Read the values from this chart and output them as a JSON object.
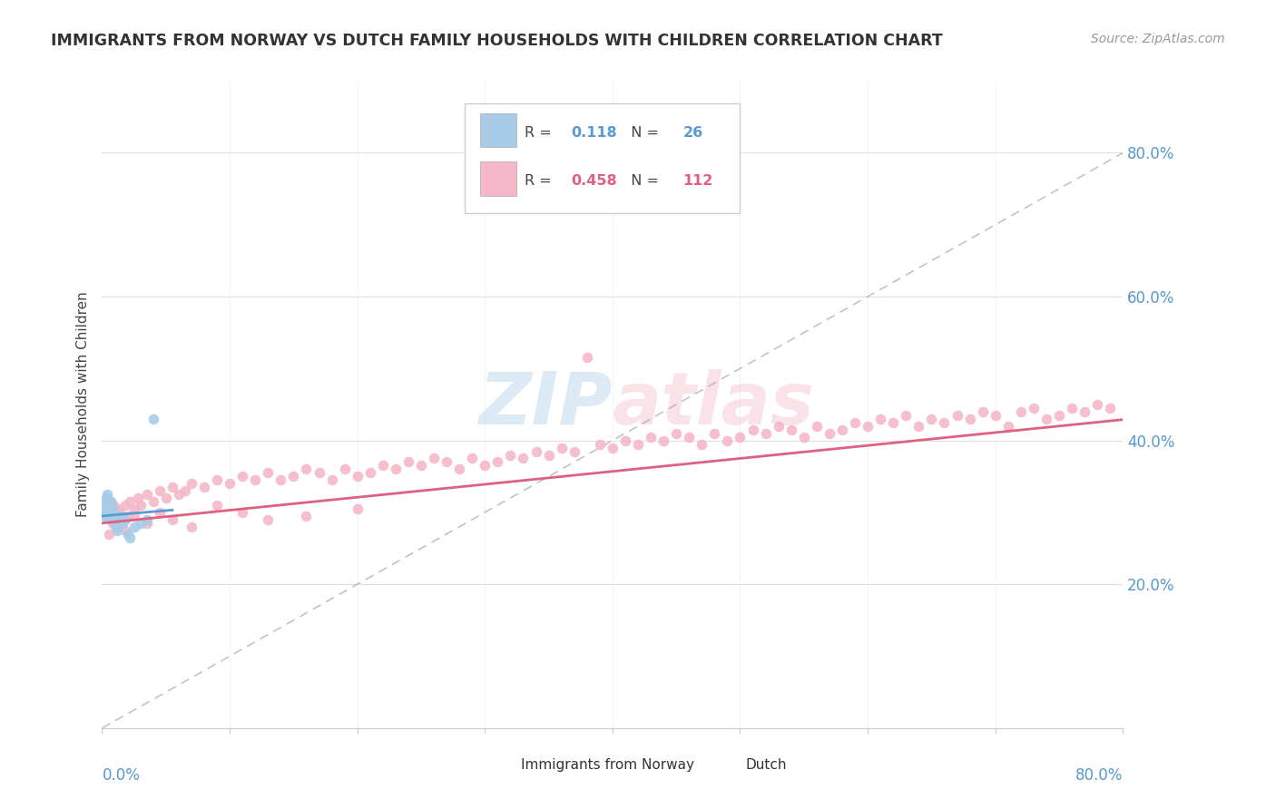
{
  "title": "IMMIGRANTS FROM NORWAY VS DUTCH FAMILY HOUSEHOLDS WITH CHILDREN CORRELATION CHART",
  "source": "Source: ZipAtlas.com",
  "ylabel": "Family Households with Children",
  "watermark": "ZIPAtlas",
  "legend_r_blue": "0.118",
  "legend_n_blue": "26",
  "legend_r_pink": "0.458",
  "legend_n_pink": "112",
  "blue_color": "#a8cce8",
  "pink_color": "#f4b8c8",
  "blue_line_color": "#5b9bd5",
  "pink_line_color": "#e06080",
  "norway_x": [
    0.001,
    0.002,
    0.002,
    0.003,
    0.003,
    0.004,
    0.004,
    0.005,
    0.005,
    0.006,
    0.006,
    0.007,
    0.008,
    0.009,
    0.01,
    0.011,
    0.012,
    0.014,
    0.016,
    0.018,
    0.02,
    0.022,
    0.025,
    0.03,
    0.035,
    0.04
  ],
  "norway_y": [
    0.3,
    0.295,
    0.31,
    0.32,
    0.315,
    0.295,
    0.325,
    0.305,
    0.31,
    0.3,
    0.295,
    0.315,
    0.305,
    0.29,
    0.285,
    0.28,
    0.275,
    0.295,
    0.285,
    0.29,
    0.27,
    0.265,
    0.28,
    0.285,
    0.29,
    0.43
  ],
  "dutch_x": [
    0.002,
    0.003,
    0.004,
    0.005,
    0.006,
    0.007,
    0.008,
    0.009,
    0.01,
    0.012,
    0.014,
    0.016,
    0.018,
    0.02,
    0.022,
    0.025,
    0.028,
    0.03,
    0.035,
    0.04,
    0.045,
    0.05,
    0.055,
    0.06,
    0.065,
    0.07,
    0.08,
    0.09,
    0.1,
    0.11,
    0.12,
    0.13,
    0.14,
    0.15,
    0.16,
    0.17,
    0.18,
    0.19,
    0.2,
    0.21,
    0.22,
    0.23,
    0.24,
    0.25,
    0.26,
    0.27,
    0.28,
    0.29,
    0.3,
    0.31,
    0.32,
    0.33,
    0.34,
    0.35,
    0.36,
    0.37,
    0.38,
    0.39,
    0.4,
    0.41,
    0.42,
    0.43,
    0.44,
    0.45,
    0.46,
    0.47,
    0.48,
    0.49,
    0.5,
    0.51,
    0.52,
    0.53,
    0.54,
    0.55,
    0.56,
    0.57,
    0.58,
    0.59,
    0.6,
    0.61,
    0.62,
    0.63,
    0.64,
    0.65,
    0.66,
    0.67,
    0.68,
    0.69,
    0.7,
    0.71,
    0.72,
    0.73,
    0.74,
    0.75,
    0.76,
    0.77,
    0.78,
    0.79,
    0.005,
    0.008,
    0.012,
    0.018,
    0.025,
    0.035,
    0.045,
    0.055,
    0.07,
    0.09,
    0.11,
    0.13,
    0.16,
    0.2
  ],
  "dutch_y": [
    0.31,
    0.295,
    0.32,
    0.305,
    0.3,
    0.315,
    0.295,
    0.31,
    0.29,
    0.305,
    0.3,
    0.285,
    0.31,
    0.295,
    0.315,
    0.305,
    0.32,
    0.31,
    0.325,
    0.315,
    0.33,
    0.32,
    0.335,
    0.325,
    0.33,
    0.34,
    0.335,
    0.345,
    0.34,
    0.35,
    0.345,
    0.355,
    0.345,
    0.35,
    0.36,
    0.355,
    0.345,
    0.36,
    0.35,
    0.355,
    0.365,
    0.36,
    0.37,
    0.365,
    0.375,
    0.37,
    0.36,
    0.375,
    0.365,
    0.37,
    0.38,
    0.375,
    0.385,
    0.38,
    0.39,
    0.385,
    0.515,
    0.395,
    0.39,
    0.4,
    0.395,
    0.405,
    0.4,
    0.41,
    0.405,
    0.395,
    0.41,
    0.4,
    0.405,
    0.415,
    0.41,
    0.42,
    0.415,
    0.405,
    0.42,
    0.41,
    0.415,
    0.425,
    0.42,
    0.43,
    0.425,
    0.435,
    0.42,
    0.43,
    0.425,
    0.435,
    0.43,
    0.44,
    0.435,
    0.42,
    0.44,
    0.445,
    0.43,
    0.435,
    0.445,
    0.44,
    0.45,
    0.445,
    0.27,
    0.285,
    0.28,
    0.275,
    0.295,
    0.285,
    0.3,
    0.29,
    0.28,
    0.31,
    0.3,
    0.29,
    0.295,
    0.305
  ],
  "xlim": [
    0.0,
    0.8
  ],
  "ylim": [
    0.0,
    0.9
  ],
  "yticks": [
    0.2,
    0.4,
    0.6,
    0.8
  ],
  "ytick_labels": [
    "20.0%",
    "40.0%",
    "60.0%",
    "80.0%"
  ]
}
